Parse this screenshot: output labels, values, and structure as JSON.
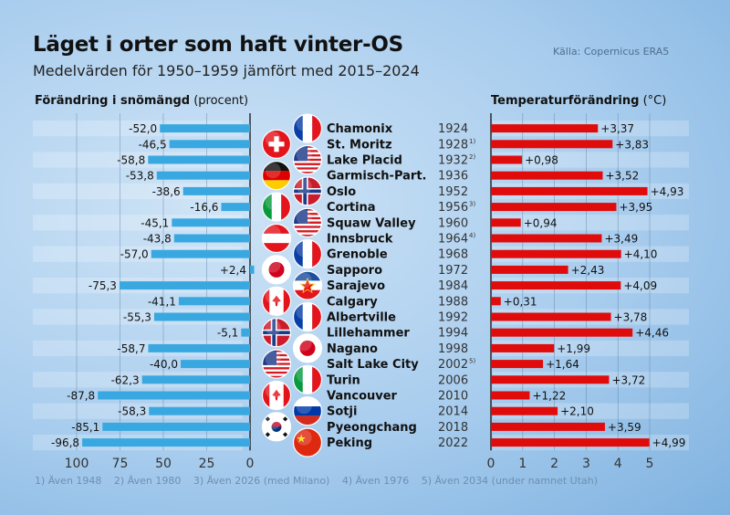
{
  "title": "Läget i orter som haft vinter-OS",
  "subtitle": "Medelvärden för 1950–1959 jämfört med 2015–2024",
  "source": "Källa: Copernicus ERA5",
  "footnotes": [
    "1) Även 1948",
    "2) Även 1980",
    "3) Även 2026 (med Milano)",
    "4) Även 1976",
    "5) Även 2034 (under namnet Utah)"
  ],
  "colors": {
    "snow_bar": "#3aa8e0",
    "temp_bar": "#e00b0b"
  },
  "chart_data": [
    {
      "type": "bar",
      "orientation": "horizontal",
      "title_bold": "Förändring i snömängd",
      "title_unit": "(procent)",
      "xlim": [
        -100,
        0
      ],
      "ticks": [
        "100",
        "75",
        "50",
        "25",
        "0"
      ],
      "grid": true,
      "categories": [
        "Chamonix",
        "St. Moritz",
        "Lake Placid",
        "Garmisch-Part.",
        "Oslo",
        "Cortina",
        "Squaw Valley",
        "Innsbruck",
        "Grenoble",
        "Sapporo",
        "Sarajevo",
        "Calgary",
        "Albertville",
        "Lillehammer",
        "Nagano",
        "Salt Lake City",
        "Turin",
        "Vancouver",
        "Sotji",
        "Pyeongchang",
        "Peking"
      ],
      "values": [
        -52.0,
        -46.5,
        -58.8,
        -53.8,
        -38.6,
        -16.6,
        -45.1,
        -43.8,
        -57.0,
        2.4,
        -75.3,
        -41.1,
        -55.3,
        -5.1,
        -58.7,
        -40.0,
        -62.3,
        -87.8,
        -58.3,
        -85.1,
        -96.8
      ],
      "labels": [
        "-52,0",
        "-46,5",
        "-58,8",
        "-53,8",
        "-38,6",
        "-16,6",
        "-45,1",
        "-43,8",
        "-57,0",
        "+2,4",
        "-75,3",
        "-41,1",
        "-55,3",
        "-5,1",
        "-58,7",
        "-40,0",
        "-62,3",
        "-87,8",
        "-58,3",
        "-85,1",
        "-96,8"
      ]
    },
    {
      "type": "bar",
      "orientation": "horizontal",
      "title_bold": "Temperaturförändring",
      "title_unit": "(°C)",
      "xlim": [
        0,
        5
      ],
      "ticks": [
        "0",
        "1",
        "2",
        "3",
        "4",
        "5"
      ],
      "grid": true,
      "categories": [
        "Chamonix",
        "St. Moritz",
        "Lake Placid",
        "Garmisch-Part.",
        "Oslo",
        "Cortina",
        "Squaw Valley",
        "Innsbruck",
        "Grenoble",
        "Sapporo",
        "Sarajevo",
        "Calgary",
        "Albertville",
        "Lillehammer",
        "Nagano",
        "Salt Lake City",
        "Turin",
        "Vancouver",
        "Sotji",
        "Pyeongchang",
        "Peking"
      ],
      "values": [
        3.37,
        3.83,
        0.98,
        3.52,
        4.93,
        3.95,
        0.94,
        3.49,
        4.1,
        2.43,
        4.09,
        0.31,
        3.78,
        4.46,
        1.99,
        1.64,
        3.72,
        1.22,
        2.1,
        3.59,
        4.99
      ],
      "labels": [
        "+3,37",
        "+3,83",
        "+0,98",
        "+3,52",
        "+4,93",
        "+3,95",
        "+0,94",
        "+3,49",
        "+4,10",
        "+2,43",
        "+4,09",
        "+0,31",
        "+3,78",
        "+4,46",
        "+1,99",
        "+1,64",
        "+3,72",
        "+1,22",
        "+2,10",
        "+3,59",
        "+4,99"
      ]
    }
  ],
  "cities": [
    {
      "name": "Chamonix",
      "year": "1924",
      "note": "",
      "flag": "france"
    },
    {
      "name": "St. Moritz",
      "year": "1928",
      "note": "1)",
      "flag": "switzerland"
    },
    {
      "name": "Lake Placid",
      "year": "1932",
      "note": "2)",
      "flag": "usa"
    },
    {
      "name": "Garmisch-Part.",
      "year": "1936",
      "note": "",
      "flag": "germany"
    },
    {
      "name": "Oslo",
      "year": "1952",
      "note": "",
      "flag": "norway"
    },
    {
      "name": "Cortina",
      "year": "1956",
      "note": "3)",
      "flag": "italy"
    },
    {
      "name": "Squaw Valley",
      "year": "1960",
      "note": "",
      "flag": "usa"
    },
    {
      "name": "Innsbruck",
      "year": "1964",
      "note": "4)",
      "flag": "austria"
    },
    {
      "name": "Grenoble",
      "year": "1968",
      "note": "",
      "flag": "france"
    },
    {
      "name": "Sapporo",
      "year": "1972",
      "note": "",
      "flag": "japan"
    },
    {
      "name": "Sarajevo",
      "year": "1984",
      "note": "",
      "flag": "yugoslavia"
    },
    {
      "name": "Calgary",
      "year": "1988",
      "note": "",
      "flag": "canada"
    },
    {
      "name": "Albertville",
      "year": "1992",
      "note": "",
      "flag": "france"
    },
    {
      "name": "Lillehammer",
      "year": "1994",
      "note": "",
      "flag": "norway"
    },
    {
      "name": "Nagano",
      "year": "1998",
      "note": "",
      "flag": "japan"
    },
    {
      "name": "Salt Lake City",
      "year": "2002",
      "note": "5)",
      "flag": "usa"
    },
    {
      "name": "Turin",
      "year": "2006",
      "note": "",
      "flag": "italy"
    },
    {
      "name": "Vancouver",
      "year": "2010",
      "note": "",
      "flag": "canada"
    },
    {
      "name": "Sotji",
      "year": "2014",
      "note": "",
      "flag": "russia"
    },
    {
      "name": "Pyeongchang",
      "year": "2018",
      "note": "",
      "flag": "south-korea"
    },
    {
      "name": "Peking",
      "year": "2022",
      "note": "",
      "flag": "china"
    }
  ]
}
